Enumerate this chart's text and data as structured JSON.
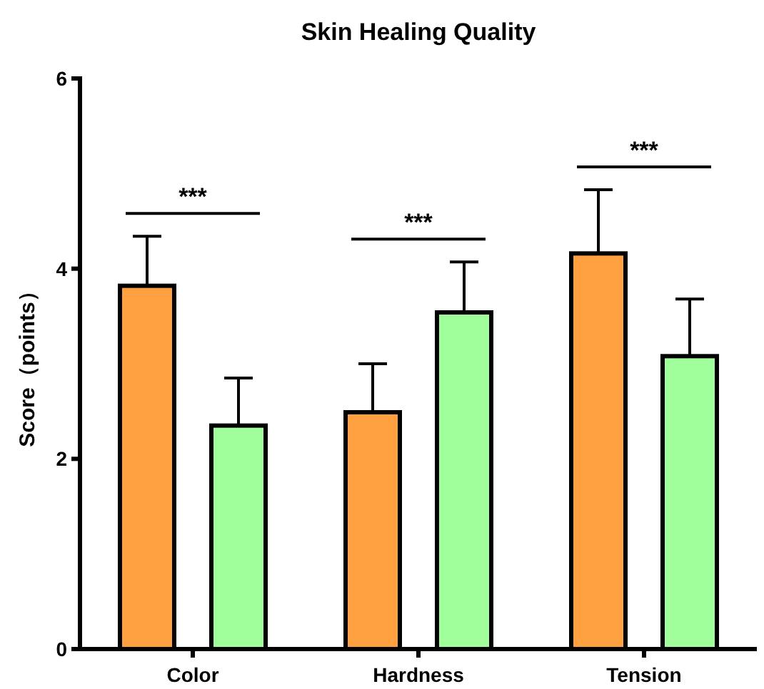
{
  "chart_data": {
    "type": "bar",
    "title": "Skin Healing Quality",
    "ylabel": "Score（points）",
    "categories": [
      "Color",
      "Hardness",
      "Tension"
    ],
    "series": [
      {
        "color": "#ffa040",
        "values": [
          3.82,
          2.49,
          4.16
        ],
        "errors": [
          [
            3.82,
            4.34
          ],
          [
            2.49,
            3.0
          ],
          [
            4.16,
            4.83
          ]
        ]
      },
      {
        "color": "#a0ff9a",
        "values": [
          2.35,
          3.54,
          3.08
        ],
        "errors": [
          [
            2.35,
            2.85
          ],
          [
            3.54,
            4.07
          ],
          [
            3.08,
            3.68
          ]
        ]
      }
    ],
    "annotations": [
      "***",
      "***",
      "***"
    ],
    "ylim": [
      0,
      6
    ],
    "yticks": [
      0,
      2,
      4,
      6
    ],
    "grid": false
  }
}
